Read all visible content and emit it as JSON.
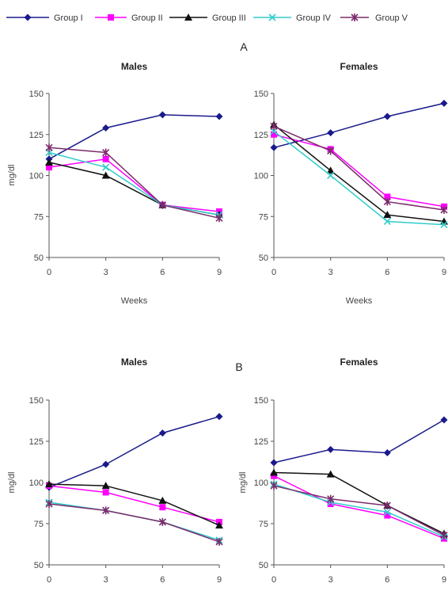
{
  "panel_labels": [
    "A",
    "B"
  ],
  "legend": [
    {
      "name": "Group I",
      "color": "#1a1a8c",
      "marker": "diamond"
    },
    {
      "name": "Group II",
      "color": "#ff00ff",
      "marker": "square"
    },
    {
      "name": "Group III",
      "color": "#111111",
      "marker": "triangle"
    },
    {
      "name": "Group IV",
      "color": "#33cccc",
      "marker": "x"
    },
    {
      "name": "Group V",
      "color": "#7b2b6b",
      "marker": "star"
    }
  ],
  "chart_data": [
    {
      "type": "line",
      "panel": "A",
      "title": "Males",
      "x": [
        0,
        3,
        6,
        9
      ],
      "xticks": [
        "0",
        "3",
        "6",
        "9"
      ],
      "xlabel": "Weeks",
      "ylabel": "mg/dl",
      "ylim": [
        50,
        150
      ],
      "yticks": [
        "50",
        "75",
        "100",
        "125",
        "150"
      ],
      "grid": false,
      "series": [
        {
          "name": "Group I",
          "values": [
            110,
            129,
            137,
            136
          ]
        },
        {
          "name": "Group II",
          "values": [
            105,
            110,
            82,
            78
          ]
        },
        {
          "name": "Group III",
          "values": [
            108,
            100,
            82,
            76
          ]
        },
        {
          "name": "Group IV",
          "values": [
            114,
            105,
            82,
            76
          ]
        },
        {
          "name": "Group V",
          "values": [
            117,
            114,
            82,
            74
          ]
        }
      ]
    },
    {
      "type": "line",
      "panel": "A",
      "title": "Females",
      "x": [
        0,
        3,
        6,
        9
      ],
      "xticks": [
        "0",
        "3",
        "6",
        "9"
      ],
      "xlabel": "Weeks",
      "ylabel": "",
      "ylim": [
        50,
        150
      ],
      "yticks": [
        "50",
        "75",
        "100",
        "125",
        "150"
      ],
      "grid": false,
      "series": [
        {
          "name": "Group I",
          "values": [
            117,
            126,
            136,
            144
          ]
        },
        {
          "name": "Group II",
          "values": [
            125,
            116,
            87,
            81
          ]
        },
        {
          "name": "Group III",
          "values": [
            131,
            103,
            76,
            72
          ]
        },
        {
          "name": "Group IV",
          "values": [
            127,
            100,
            72,
            70
          ]
        },
        {
          "name": "Group V",
          "values": [
            130,
            115,
            84,
            79
          ]
        }
      ]
    },
    {
      "type": "line",
      "panel": "B",
      "title": "Males",
      "x": [
        0,
        3,
        6,
        9
      ],
      "xticks": [
        "0",
        "3",
        "6",
        "9"
      ],
      "xlabel": "",
      "ylabel": "mg/dl",
      "ylim": [
        50,
        150
      ],
      "yticks": [
        "50",
        "75",
        "100",
        "125",
        "150"
      ],
      "grid": false,
      "series": [
        {
          "name": "Group I",
          "values": [
            97,
            111,
            130,
            140
          ]
        },
        {
          "name": "Group II",
          "values": [
            98,
            94,
            85,
            76
          ]
        },
        {
          "name": "Group III",
          "values": [
            99,
            98,
            89,
            74
          ]
        },
        {
          "name": "Group IV",
          "values": [
            88,
            83,
            76,
            65
          ]
        },
        {
          "name": "Group V",
          "values": [
            87,
            83,
            76,
            64
          ]
        }
      ]
    },
    {
      "type": "line",
      "panel": "B",
      "title": "Females",
      "x": [
        0,
        3,
        6,
        9
      ],
      "xticks": [
        "0",
        "3",
        "6",
        "9"
      ],
      "xlabel": "",
      "ylabel": "mg/dl",
      "ylim": [
        50,
        150
      ],
      "yticks": [
        "50",
        "75",
        "100",
        "125",
        "150"
      ],
      "grid": false,
      "series": [
        {
          "name": "Group I",
          "values": [
            112,
            120,
            118,
            138
          ]
        },
        {
          "name": "Group II",
          "values": [
            104,
            87,
            80,
            66
          ]
        },
        {
          "name": "Group III",
          "values": [
            106,
            105,
            86,
            69
          ]
        },
        {
          "name": "Group IV",
          "values": [
            99,
            88,
            82,
            67
          ]
        },
        {
          "name": "Group V",
          "values": [
            98,
            90,
            86,
            68
          ]
        }
      ]
    }
  ]
}
